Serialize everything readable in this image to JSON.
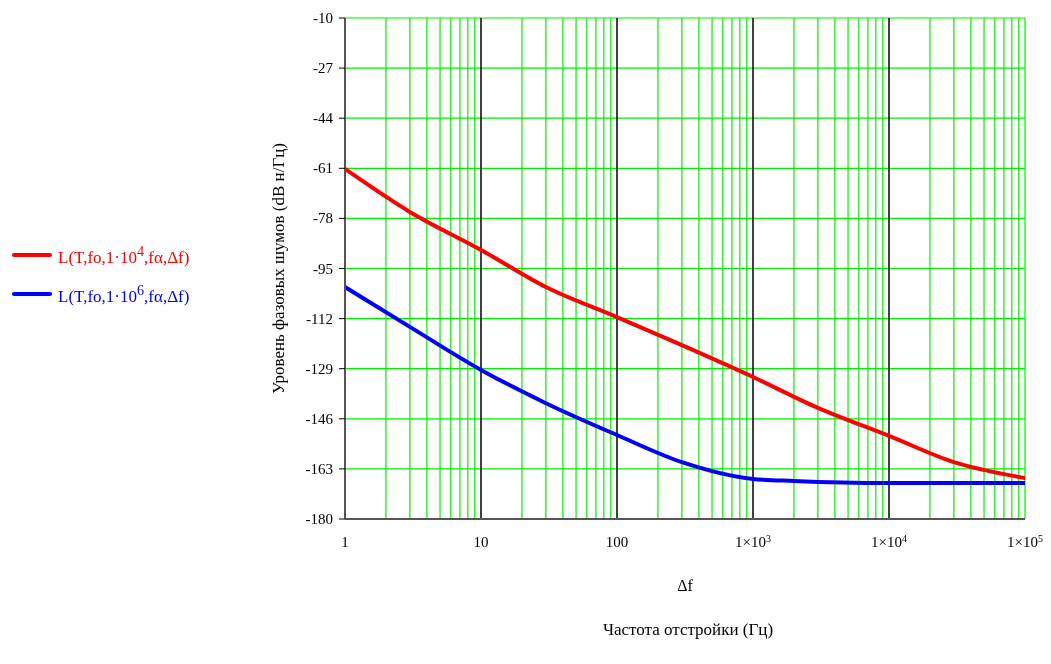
{
  "chart_data": {
    "type": "line",
    "xlabel": "Δf",
    "ylabel": "Уровень фазовых шумов (dB н/Гц)",
    "annotations": [
      "Частота отстройки (Гц)"
    ],
    "log": "x",
    "grid": true,
    "legend": "left",
    "marker": "none",
    "line_style": "solid",
    "xlim": [
      1,
      100000
    ],
    "xticks": [
      1,
      {
        "value": 2,
        "label": null
      },
      {
        "value": 3,
        "label": null
      },
      {
        "value": 4,
        "label": null
      },
      {
        "value": 5,
        "label": null
      },
      {
        "value": 6,
        "label": null
      },
      {
        "value": 7,
        "label": null
      },
      {
        "value": 8,
        "label": null
      },
      {
        "value": 9,
        "label": null
      },
      10,
      {
        "value": 20,
        "label": null
      },
      {
        "value": 30,
        "label": null
      },
      {
        "value": 40,
        "label": null
      },
      {
        "value": 50,
        "label": null
      },
      {
        "value": 60,
        "label": null
      },
      {
        "value": 70,
        "label": null
      },
      {
        "value": 80,
        "label": null
      },
      {
        "value": 90,
        "label": null
      },
      100,
      {
        "value": 200,
        "label": null
      },
      {
        "value": 300,
        "label": null
      },
      {
        "value": 400,
        "label": null
      },
      {
        "value": 500,
        "label": null
      },
      {
        "value": 600,
        "label": null
      },
      {
        "value": 700,
        "label": null
      },
      {
        "value": 800,
        "label": null
      },
      {
        "value": 900,
        "label": null
      },
      {
        "value": 1000,
        "label": "1×10$^{3}$"
      },
      {
        "value": 2000,
        "label": null
      },
      {
        "value": 3000,
        "label": null
      },
      {
        "value": 4000,
        "label": null
      },
      {
        "value": 5000,
        "label": null
      },
      {
        "value": 6000,
        "label": null
      },
      {
        "value": 7000,
        "label": null
      },
      {
        "value": 8000,
        "label": null
      },
      {
        "value": 9000,
        "label": null
      },
      {
        "value": 10000,
        "label": "1×10$^{4}$"
      },
      {
        "value": 20000,
        "label": null
      },
      {
        "value": 30000,
        "label": null
      },
      {
        "value": 40000,
        "label": null
      },
      {
        "value": 50000,
        "label": null
      },
      {
        "value": 60000,
        "label": null
      },
      {
        "value": 70000,
        "label": null
      },
      {
        "value": 80000,
        "label": null
      },
      {
        "value": 90000,
        "label": null
      },
      {
        "value": 100000,
        "label": "1×10$^{5}$"
      }
    ],
    "ylim": [
      -180,
      -10
    ],
    "yticks": [
      -180,
      -163,
      -146,
      -129,
      -112,
      -95,
      -78,
      -61,
      -44,
      -27,
      -10
    ],
    "series": [
      {
        "name": "L(T,fo,1·10$^{4}$,fα,Δf)",
        "color": "#ff0000",
        "x": [
          1,
          3,
          10,
          30,
          100,
          300,
          1000,
          3000,
          10000,
          30000,
          100000
        ],
        "values": [
          -61.2,
          -75.8,
          -88.7,
          -101.3,
          -111.5,
          -121,
          -131.8,
          -142.3,
          -151.8,
          -160.7,
          -166.1
        ]
      },
      {
        "name": "L(T,fo,1·10$^{6}$,fα,Δf)",
        "color": "#0000ff",
        "x": [
          1,
          3,
          10,
          30,
          100,
          300,
          1000,
          2000,
          10000,
          100000
        ],
        "values": [
          -101.3,
          -114.8,
          -129.4,
          -140.7,
          -151.5,
          -160.7,
          -166.4,
          -167.1,
          -167.8,
          -167.8
        ]
      }
    ]
  }
}
